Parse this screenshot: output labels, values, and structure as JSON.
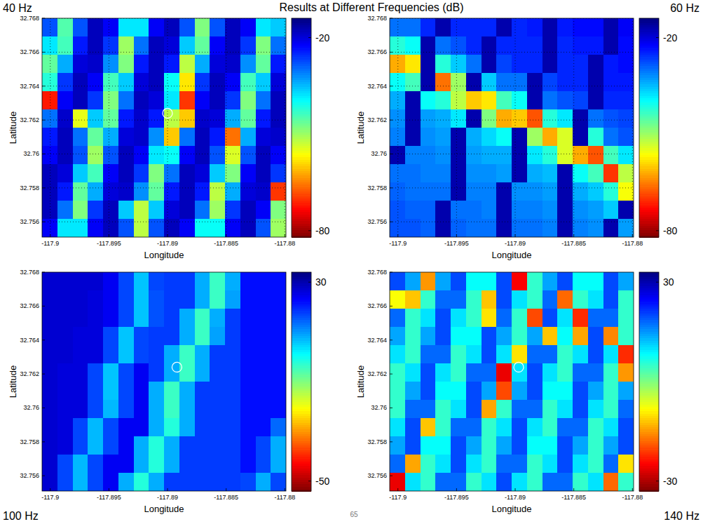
{
  "title": "Results at Different Frequencies (dB)",
  "page": 65,
  "chart_data": [
    {
      "type": "heatmap",
      "title": "40 Hz",
      "x_label": "Longitude",
      "y_label": "Latitude",
      "xlim": [
        -117.9007,
        -117.8799
      ],
      "ylim": [
        32.7551,
        32.768
      ],
      "xticks": [
        -117.9,
        -117.895,
        -117.89,
        -117.885,
        -117.88
      ],
      "yticks": [
        32.756,
        32.758,
        32.76,
        32.762,
        32.764,
        32.766,
        32.768
      ],
      "grid": true,
      "colorbar": {
        "range": [
          -82,
          -14
        ],
        "ticks": [
          -20,
          -80
        ]
      },
      "highlight": {
        "x": -117.89,
        "y": 32.7624
      },
      "cells": [
        [
          -28,
          -45,
          -28,
          -18,
          -22,
          -38,
          -38,
          -22,
          -18,
          -28,
          -48,
          -28,
          -18,
          -22,
          -38,
          -36
        ],
        [
          -38,
          -44,
          -24,
          -18,
          -26,
          -50,
          -30,
          -18,
          -20,
          -36,
          -46,
          -22,
          -18,
          -26,
          -48,
          -30
        ],
        [
          -46,
          -34,
          -20,
          -19,
          -32,
          -48,
          -24,
          -18,
          -24,
          -52,
          -34,
          -20,
          -19,
          -32,
          -46,
          -24
        ],
        [
          -42,
          -26,
          -18,
          -22,
          -44,
          -36,
          -20,
          -18,
          -40,
          -58,
          -26,
          -18,
          -22,
          -44,
          -36,
          -20
        ],
        [
          -72,
          -22,
          -18,
          -26,
          -48,
          -30,
          -18,
          -20,
          -38,
          -70,
          -22,
          -18,
          -26,
          -48,
          -30,
          -18
        ],
        [
          -30,
          -19,
          -55,
          -36,
          -46,
          -24,
          -19,
          -24,
          -52,
          -60,
          -19,
          -20,
          -34,
          -46,
          -24,
          -18
        ],
        [
          -24,
          -18,
          -30,
          -46,
          -34,
          -20,
          -19,
          -32,
          -60,
          -30,
          -18,
          -24,
          -66,
          -34,
          -20,
          -19
        ],
        [
          -22,
          -18,
          -28,
          -50,
          -28,
          -18,
          -22,
          -38,
          -40,
          -22,
          -18,
          -28,
          -54,
          -28,
          -18,
          -22
        ],
        [
          -18,
          -20,
          -36,
          -44,
          -22,
          -18,
          -26,
          -48,
          -30,
          -18,
          -20,
          -36,
          -48,
          -22,
          -18,
          -26
        ],
        [
          -18,
          -24,
          -46,
          -34,
          -20,
          -19,
          -32,
          -46,
          -24,
          -18,
          -24,
          -52,
          -34,
          -20,
          -19,
          -70
        ],
        [
          -18,
          -30,
          -48,
          -26,
          -18,
          -36,
          -52,
          -36,
          -20,
          -18,
          -30,
          -50,
          -26,
          -18,
          -22,
          -48
        ],
        [
          -22,
          -38,
          -38,
          -22,
          -18,
          -28,
          -52,
          -28,
          -18,
          -22,
          -40,
          -40,
          -22,
          -18,
          -28,
          -50
        ]
      ]
    },
    {
      "type": "heatmap",
      "title": "60 Hz",
      "x_label": "Longitude",
      "y_label": "Latitude",
      "xlim": [
        -117.9007,
        -117.8799
      ],
      "ylim": [
        32.7551,
        32.768
      ],
      "xticks": [
        -117.9,
        -117.895,
        -117.89,
        -117.885,
        -117.88
      ],
      "yticks": [
        32.756,
        32.758,
        32.76,
        32.762,
        32.764,
        32.766,
        32.768
      ],
      "grid": true,
      "colorbar": {
        "range": [
          -82,
          -14
        ],
        "ticks": [
          -20,
          -80
        ]
      },
      "cells": [
        [
          -30,
          -30,
          -25,
          -17,
          -25,
          -25,
          -25,
          -17,
          -25,
          -24,
          -17,
          -24,
          -23,
          -23,
          -17,
          -22
        ],
        [
          -42,
          -40,
          -17,
          -30,
          -28,
          -25,
          -17,
          -25,
          -25,
          -25,
          -17,
          -25,
          -24,
          -24,
          -17,
          -23
        ],
        [
          -62,
          -58,
          -17,
          -42,
          -36,
          -30,
          -17,
          -27,
          -25,
          -25,
          -17,
          -25,
          -25,
          -17,
          -24,
          -23
        ],
        [
          -40,
          -44,
          -17,
          -66,
          -50,
          -17,
          -36,
          -30,
          -30,
          -17,
          -27,
          -25,
          -25,
          -17,
          -24,
          -24
        ],
        [
          -34,
          -17,
          -40,
          -42,
          -52,
          -60,
          -58,
          -44,
          -40,
          -17,
          -30,
          -28,
          -27,
          -17,
          -25,
          -25
        ],
        [
          -32,
          -17,
          -33,
          -34,
          -38,
          -17,
          -48,
          -62,
          -60,
          -68,
          -42,
          -38,
          -17,
          -30,
          -28,
          -27
        ],
        [
          -31,
          -17,
          -32,
          -33,
          -17,
          -34,
          -37,
          -40,
          -17,
          -50,
          -62,
          -54,
          -17,
          -42,
          -30,
          -28
        ],
        [
          -17,
          -31,
          -31,
          -32,
          -17,
          -33,
          -34,
          -34,
          -17,
          -38,
          -42,
          -54,
          -62,
          -68,
          -44,
          -38
        ],
        [
          -30,
          -30,
          -31,
          -31,
          -17,
          -32,
          -32,
          -33,
          -17,
          -34,
          -35,
          -17,
          -40,
          -44,
          -70,
          -52
        ],
        [
          -29,
          -30,
          -30,
          -30,
          -17,
          -31,
          -31,
          -17,
          -32,
          -32,
          -33,
          -17,
          -34,
          -36,
          -42,
          -56
        ],
        [
          -28,
          -29,
          -29,
          -17,
          -30,
          -30,
          -31,
          -17,
          -31,
          -31,
          -32,
          -17,
          -32,
          -33,
          -36,
          -17
        ],
        [
          -28,
          -28,
          -29,
          -17,
          -29,
          -30,
          -30,
          -17,
          -30,
          -30,
          -31,
          -17,
          -31,
          -32,
          -17,
          -33
        ]
      ]
    },
    {
      "type": "heatmap",
      "title": "100 Hz",
      "x_label": "Longitude",
      "y_label": "Latitude",
      "xlim": [
        -117.9007,
        -117.8799
      ],
      "ylim": [
        32.7551,
        32.768
      ],
      "xticks": [
        -117.9,
        -117.895,
        -117.89,
        -117.885,
        -117.88
      ],
      "yticks": [
        32.756,
        32.758,
        32.76,
        32.762,
        32.764,
        32.766,
        32.768
      ],
      "grid": false,
      "colorbar": {
        "range": [
          -54,
          34
        ],
        "ticks": [
          30,
          -50
        ]
      },
      "highlight": {
        "x": -117.8892,
        "y": 32.7624
      },
      "cells": [
        [
          27,
          27,
          27,
          27,
          24,
          17,
          6,
          17,
          18,
          18,
          8,
          -4,
          8,
          22,
          22,
          22
        ],
        [
          27,
          27,
          27,
          26,
          24,
          17,
          6,
          16,
          18,
          18,
          8,
          -4,
          9,
          22,
          22,
          22
        ],
        [
          27,
          27,
          27,
          26,
          24,
          17,
          6,
          16,
          18,
          8,
          -4,
          8,
          18,
          22,
          22,
          22
        ],
        [
          27,
          27,
          26,
          26,
          17,
          6,
          17,
          18,
          18,
          8,
          -4,
          9,
          18,
          22,
          22,
          22
        ],
        [
          27,
          27,
          26,
          26,
          17,
          6,
          17,
          18,
          8,
          -4,
          8,
          18,
          18,
          22,
          22,
          22
        ],
        [
          27,
          26,
          26,
          17,
          6,
          17,
          24,
          18,
          8,
          -4,
          8,
          18,
          18,
          22,
          22,
          22
        ],
        [
          27,
          26,
          26,
          17,
          6,
          17,
          24,
          8,
          -4,
          8,
          18,
          18,
          18,
          22,
          22,
          22
        ],
        [
          27,
          26,
          26,
          17,
          7,
          17,
          24,
          8,
          -4,
          8,
          18,
          18,
          18,
          22,
          22,
          22
        ],
        [
          27,
          26,
          17,
          7,
          17,
          24,
          24,
          8,
          -2,
          8,
          18,
          18,
          18,
          22,
          22,
          14
        ],
        [
          27,
          26,
          17,
          7,
          17,
          24,
          8,
          -2,
          8,
          18,
          18,
          18,
          18,
          22,
          17,
          8
        ],
        [
          27,
          17,
          7,
          17,
          24,
          24,
          8,
          -2,
          8,
          18,
          18,
          18,
          18,
          22,
          17,
          8
        ],
        [
          27,
          17,
          7,
          17,
          24,
          8,
          -2,
          8,
          18,
          18,
          18,
          18,
          18,
          17,
          8,
          17
        ]
      ]
    },
    {
      "type": "heatmap",
      "title": "140 Hz",
      "x_label": "Longitude",
      "y_label": "Latitude",
      "xlim": [
        -117.9007,
        -117.8799
      ],
      "ylim": [
        32.7551,
        32.768
      ],
      "xticks": [
        -117.9,
        -117.895,
        -117.89,
        -117.885,
        -117.88
      ],
      "yticks": [
        32.756,
        32.758,
        32.76,
        32.762,
        32.764,
        32.766,
        32.768
      ],
      "grid": false,
      "colorbar": {
        "range": [
          -33,
          33
        ],
        "ticks": [
          30,
          -30
        ]
      },
      "highlight": {
        "x": -117.8897,
        "y": 32.7624
      },
      "cells": [
        [
          20,
          14,
          -15,
          14,
          20,
          8,
          8,
          20,
          -25,
          5,
          14,
          20,
          8,
          8,
          20,
          14
        ],
        [
          -8,
          -12,
          5,
          18,
          18,
          5,
          -12,
          20,
          10,
          5,
          18,
          -18,
          5,
          10,
          20,
          5
        ],
        [
          18,
          5,
          10,
          20,
          10,
          5,
          -10,
          18,
          5,
          -20,
          20,
          10,
          -22,
          18,
          18,
          5
        ],
        [
          14,
          5,
          14,
          20,
          8,
          8,
          20,
          14,
          5,
          14,
          -12,
          8,
          -14,
          20,
          -16,
          5
        ],
        [
          10,
          5,
          18,
          18,
          5,
          10,
          20,
          10,
          -10,
          18,
          18,
          5,
          10,
          20,
          10,
          -22
        ],
        [
          5,
          10,
          20,
          10,
          5,
          18,
          18,
          -26,
          10,
          20,
          10,
          5,
          18,
          18,
          5,
          -15
        ],
        [
          5,
          14,
          20,
          8,
          8,
          20,
          14,
          -20,
          14,
          20,
          8,
          8,
          20,
          14,
          5,
          14
        ],
        [
          5,
          18,
          18,
          5,
          10,
          20,
          -14,
          5,
          18,
          18,
          5,
          10,
          20,
          10,
          5,
          18
        ],
        [
          10,
          20,
          -12,
          5,
          18,
          18,
          5,
          10,
          20,
          10,
          5,
          18,
          18,
          5,
          10,
          20
        ],
        [
          14,
          20,
          8,
          8,
          20,
          14,
          5,
          14,
          20,
          8,
          8,
          20,
          14,
          5,
          14,
          20
        ],
        [
          18,
          -14,
          5,
          10,
          20,
          10,
          5,
          18,
          18,
          5,
          10,
          20,
          10,
          5,
          18,
          -10
        ],
        [
          -26,
          10,
          5,
          18,
          18,
          5,
          10,
          20,
          10,
          5,
          18,
          18,
          5,
          10,
          -18,
          5
        ]
      ]
    }
  ]
}
